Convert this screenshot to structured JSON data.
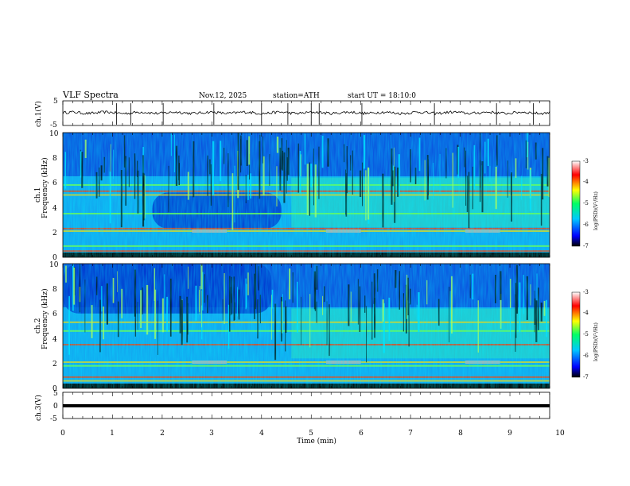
{
  "header": {
    "title": "VLF  Spectra",
    "date": "Nov.12, 2025",
    "station": "station=ATH",
    "start": "start  UT  =    18:10:0"
  },
  "chart_data": [
    {
      "type": "line",
      "name": "ch1-waveform",
      "ylabel": "ch.1(V)",
      "ylim": [
        -5,
        5
      ],
      "yticks": [
        "5",
        "-5"
      ],
      "xlim": [
        0,
        10
      ],
      "baseline": 0,
      "spike_times": [
        1.08,
        1.37,
        2.02,
        3.04,
        4.0,
        4.53,
        5.0,
        5.16,
        6.02,
        7.48,
        8.73,
        9.47
      ],
      "color": "#000000"
    },
    {
      "type": "heatmap",
      "name": "ch1-spectrogram",
      "ylabel": "Frequency (kHz)",
      "channel_label": "ch.1",
      "ylim": [
        0,
        10
      ],
      "yticks": [
        "0",
        "2",
        "4",
        "6",
        "8",
        "10"
      ],
      "xlim": [
        0,
        10
      ],
      "lines_khz": [
        0.3,
        0.5,
        0.9,
        2.1,
        2.3,
        3.5,
        5.0,
        5.3,
        5.8
      ],
      "quiet_region": {
        "x": [
          1.8,
          4.4
        ],
        "y_khz": [
          2.3,
          5.2
        ]
      }
    },
    {
      "type": "heatmap",
      "name": "ch2-spectrogram",
      "ylabel": "Frequency (kHz)",
      "channel_label": "ch.2",
      "ylim": [
        0,
        10
      ],
      "yticks": [
        "0",
        "2",
        "4",
        "6",
        "8",
        "10"
      ],
      "xlim": [
        0,
        10
      ],
      "lines_khz": [
        0.6,
        0.9,
        1.8,
        2.1,
        3.5,
        4.6,
        5.3
      ],
      "quiet_region": {
        "x": [
          0,
          4.2
        ],
        "y_khz": [
          6.0,
          10.0
        ]
      }
    },
    {
      "type": "line",
      "name": "ch3-waveform",
      "ylabel": "ch.3(V)",
      "ylim": [
        -5,
        5
      ],
      "yticks": [
        "5",
        "0",
        "-5"
      ],
      "xlim": [
        0,
        10
      ],
      "baseline": 0,
      "color": "#000000"
    }
  ],
  "xaxis": {
    "label": "Time (min)",
    "ticks": [
      "0",
      "1",
      "2",
      "3",
      "4",
      "5",
      "6",
      "7",
      "8",
      "9",
      "10"
    ]
  },
  "colorbar": {
    "label": "log(PSD)(V²/Hz)",
    "ticks": [
      "-3",
      "-4",
      "-5",
      "-6",
      "-7"
    ],
    "range": [
      -7,
      -3
    ],
    "colors": [
      "#000000",
      "#0000ff",
      "#00c8ff",
      "#00ff66",
      "#ffff00",
      "#ff0000",
      "#ffffff"
    ]
  }
}
